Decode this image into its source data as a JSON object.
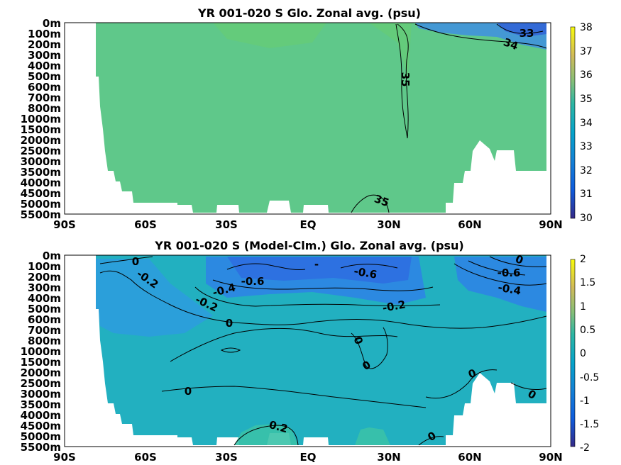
{
  "chart_data": [
    {
      "type": "heatmap",
      "title": "YR 001-020 S Glo. Zonal avg. (psu)",
      "xticks": [
        "90S",
        "60S",
        "30S",
        "EQ",
        "30N",
        "60N",
        "90N"
      ],
      "x_values": [
        -90,
        -60,
        -30,
        0,
        30,
        60,
        90
      ],
      "yticks": [
        "0m",
        "100m",
        "200m",
        "300m",
        "400m",
        "500m",
        "600m",
        "700m",
        "800m",
        "1000m",
        "1500m",
        "2000m",
        "2500m",
        "3000m",
        "3500m",
        "4000m",
        "4500m",
        "5000m",
        "5500m"
      ],
      "colorbar": {
        "ticks": [
          "38",
          "37",
          "36",
          "35",
          "34",
          "33",
          "32",
          "31",
          "30"
        ],
        "range": [
          30,
          38
        ]
      },
      "contour_labels": [
        "33",
        "34",
        "35",
        "35"
      ],
      "colors": {
        "background": "#5fc88a",
        "cold": "#3f8fe0",
        "warm": "#66cc75"
      }
    },
    {
      "type": "heatmap",
      "title": "YR 001-020 S (Model-Clm.) Glo. Zonal avg. (psu)",
      "xticks": [
        "90S",
        "60S",
        "30S",
        "EQ",
        "30N",
        "60N",
        "90N"
      ],
      "x_values": [
        -90,
        -60,
        -30,
        0,
        30,
        60,
        90
      ],
      "yticks": [
        "0m",
        "100m",
        "200m",
        "300m",
        "400m",
        "500m",
        "600m",
        "700m",
        "800m",
        "1000m",
        "1500m",
        "2000m",
        "2500m",
        "3000m",
        "3500m",
        "4000m",
        "4500m",
        "5000m",
        "5500m"
      ],
      "colorbar": {
        "ticks": [
          "2",
          "1.5",
          "1",
          "0.5",
          "0",
          "-0.5",
          "-1",
          "-1.5",
          "-2"
        ],
        "range": [
          -2,
          2
        ]
      },
      "contour_labels": [
        "0",
        "-0.2",
        "-0.2",
        "-0.4",
        "-0.6",
        "-0.6",
        "-0.6",
        "-0.2",
        "-0.4",
        "0",
        "0",
        "0",
        "0",
        "0",
        "0",
        "0.2",
        "0",
        "-",
        "0"
      ],
      "colors": {
        "background": "#22b0c0",
        "cold": "#2e82e6",
        "warm": "#3ac2a8"
      }
    }
  ]
}
